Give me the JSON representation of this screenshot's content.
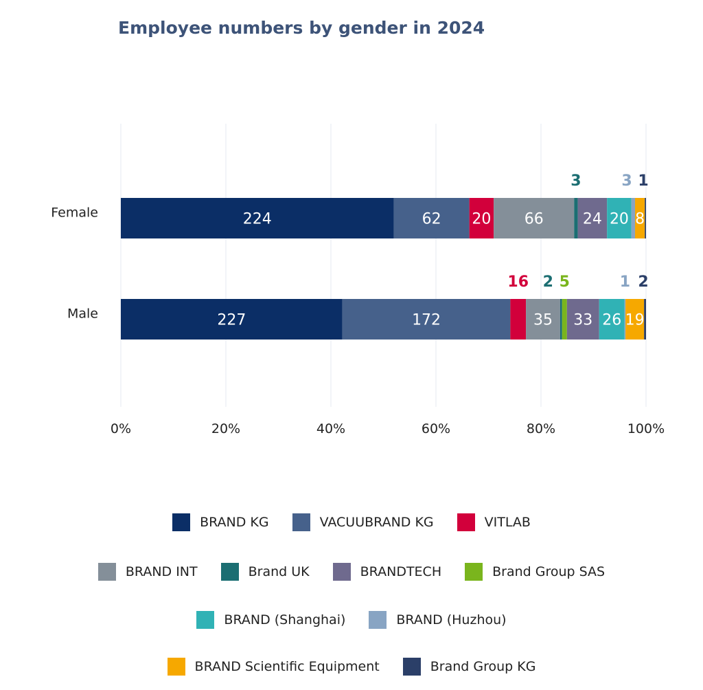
{
  "chart_data": {
    "type": "bar",
    "orientation": "horizontal",
    "stacked": "percent",
    "title": "Employee numbers by gender in 2024",
    "categories": [
      "Female",
      "Male"
    ],
    "x_ticks": [
      "0%",
      "20%",
      "40%",
      "60%",
      "80%",
      "100%"
    ],
    "xlim": [
      0,
      100
    ],
    "grid": "vertical",
    "legend_position": "bottom",
    "series": [
      {
        "name": "BRAND KG",
        "color": "#0b2e66",
        "values": [
          224,
          227
        ]
      },
      {
        "name": "VACUUBRAND KG",
        "color": "#46618b",
        "values": [
          62,
          172
        ]
      },
      {
        "name": "VITLAB",
        "color": "#d2003b",
        "values": [
          20,
          16
        ]
      },
      {
        "name": "BRAND INT",
        "color": "#848f99",
        "values": [
          66,
          35
        ]
      },
      {
        "name": "Brand UK",
        "color": "#1b6e72",
        "values": [
          3,
          2
        ]
      },
      {
        "name": "Brand Group SAS",
        "color": "#7ab51d",
        "values": [
          0,
          5
        ]
      },
      {
        "name": "BRANDTECH",
        "color": "#6f6a8e",
        "values": [
          24,
          33
        ]
      },
      {
        "name": "BRAND (Shanghai)",
        "color": "#30b2b5",
        "values": [
          20,
          26
        ]
      },
      {
        "name": "BRAND (Huzhou)",
        "color": "#88a4c3",
        "values": [
          3,
          1
        ]
      },
      {
        "name": "BRAND Scientific Equipment",
        "color": "#f6a800",
        "values": [
          8,
          19
        ]
      },
      {
        "name": "Brand Group KG",
        "color": "#2b3f68",
        "values": [
          1,
          2
        ]
      }
    ],
    "legend_rows": [
      [
        "BRAND KG",
        "VACUUBRAND KG",
        "VITLAB"
      ],
      [
        "BRAND INT",
        "Brand UK",
        "BRANDTECH",
        "Brand Group SAS"
      ],
      [
        "BRAND (Shanghai)",
        "BRAND (Huzhou)"
      ],
      [
        "BRAND Scientific Equipment",
        "Brand Group KG"
      ]
    ]
  }
}
